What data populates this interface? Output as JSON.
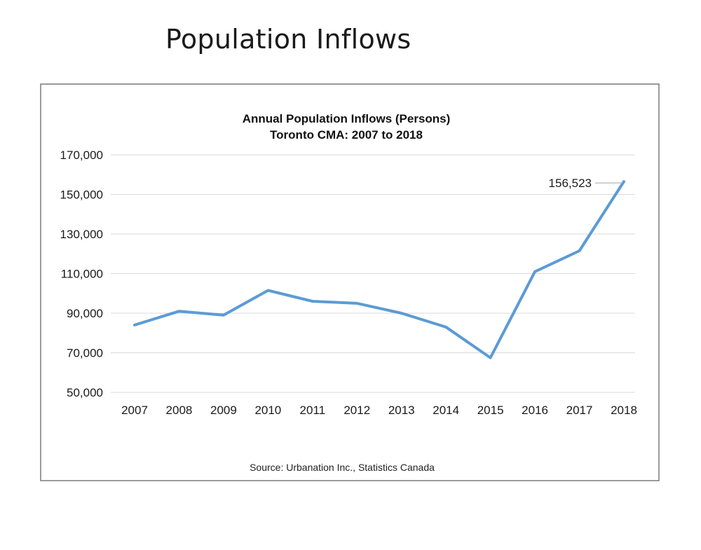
{
  "page": {
    "title": "Population Inflows"
  },
  "chart_data": {
    "type": "line",
    "title": "Annual Population Inflows (Persons)",
    "subtitle": "Toronto CMA: 2007 to 2018",
    "xlabel": "",
    "ylabel": "",
    "categories": [
      "2007",
      "2008",
      "2009",
      "2010",
      "2011",
      "2012",
      "2013",
      "2014",
      "2015",
      "2016",
      "2017",
      "2018"
    ],
    "series": [
      {
        "values": [
          84000,
          91000,
          89000,
          101500,
          96000,
          95000,
          90000,
          83000,
          67500,
          111000,
          121500,
          156523
        ],
        "color": "#5b9bd5"
      }
    ],
    "ylim": [
      50000,
      170000
    ],
    "yticks": [
      50000,
      70000,
      90000,
      110000,
      130000,
      150000,
      170000
    ],
    "ytick_labels": [
      "50,000",
      "70,000",
      "90,000",
      "110,000",
      "130,000",
      "150,000",
      "170,000"
    ],
    "grid": true,
    "legend": "none",
    "annotations": [
      {
        "category": "2018",
        "value": 156523,
        "text": "156,523"
      }
    ],
    "source": "Source: Urbanation Inc., Statistics Canada"
  }
}
